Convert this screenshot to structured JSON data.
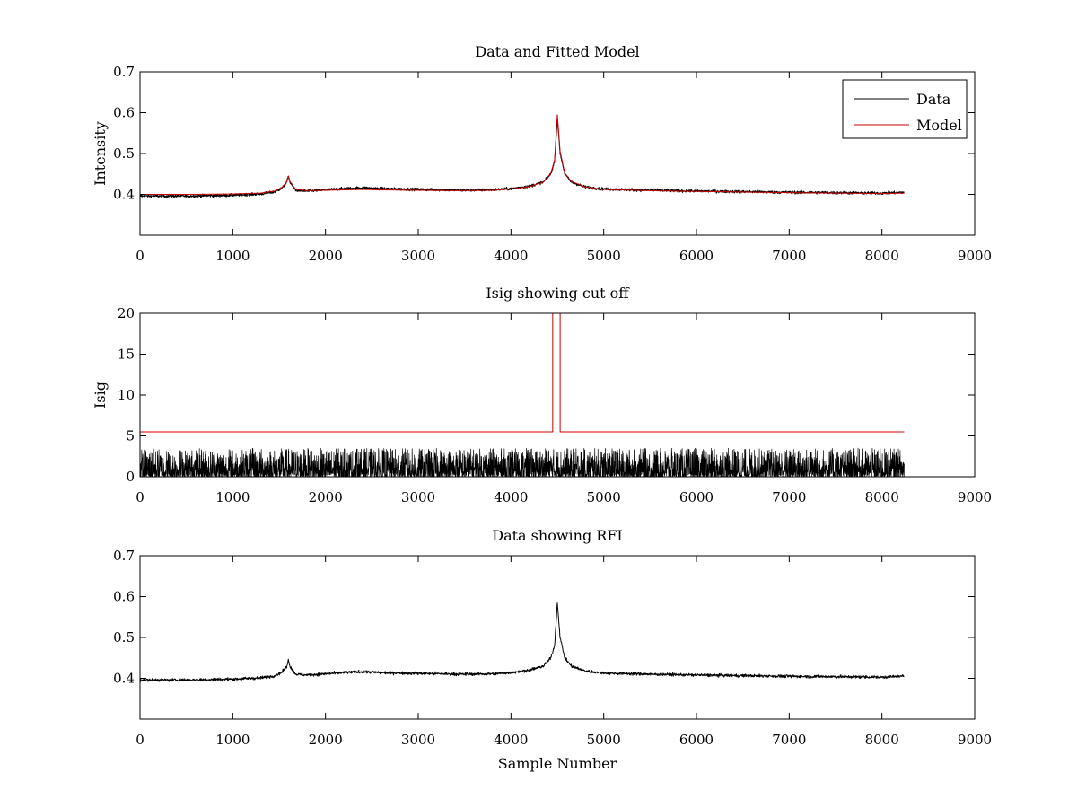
{
  "chart_data": [
    {
      "type": "line",
      "title": "Data and Fitted Model",
      "xlabel": "",
      "ylabel": "Intensity",
      "xlim": [
        0,
        9000
      ],
      "ylim": [
        0.3,
        0.7
      ],
      "xticks": [
        0,
        1000,
        2000,
        3000,
        4000,
        5000,
        6000,
        7000,
        8000,
        9000
      ],
      "yticks": [
        0.4,
        0.5,
        0.6,
        0.7
      ],
      "ytick_labels": [
        "0.4",
        "0.5",
        "0.6",
        "0.7"
      ],
      "legend": {
        "position": "top-right",
        "entries": [
          "Data",
          "Model"
        ]
      },
      "grid": false,
      "series": [
        {
          "name": "Data",
          "color": "#000000",
          "style": "noisy",
          "x": [
            0,
            500,
            1000,
            1300,
            1450,
            1530,
            1580,
            1600,
            1620,
            1680,
            1800,
            2000,
            2200,
            2400,
            2600,
            3000,
            3500,
            3800,
            4000,
            4200,
            4350,
            4430,
            4470,
            4500,
            4530,
            4580,
            4650,
            4800,
            5000,
            5500,
            6000,
            7000,
            8000,
            8240
          ],
          "y": [
            0.396,
            0.396,
            0.398,
            0.401,
            0.406,
            0.415,
            0.428,
            0.445,
            0.428,
            0.41,
            0.408,
            0.411,
            0.414,
            0.416,
            0.414,
            0.412,
            0.41,
            0.411,
            0.414,
            0.42,
            0.43,
            0.45,
            0.48,
            0.585,
            0.5,
            0.45,
            0.43,
            0.418,
            0.413,
            0.41,
            0.408,
            0.405,
            0.403,
            0.405
          ]
        },
        {
          "name": "Model",
          "color": "#cc0000",
          "style": "smooth",
          "x": [
            0,
            500,
            1000,
            1300,
            1450,
            1530,
            1580,
            1600,
            1620,
            1680,
            1800,
            2000,
            2200,
            2400,
            2600,
            3000,
            3500,
            3800,
            4000,
            4200,
            4350,
            4430,
            4470,
            4500,
            4530,
            4580,
            4650,
            4800,
            5000,
            5500,
            6000,
            7000,
            8000,
            8240
          ],
          "y": [
            0.4,
            0.4,
            0.401,
            0.403,
            0.408,
            0.417,
            0.43,
            0.445,
            0.43,
            0.412,
            0.409,
            0.41,
            0.411,
            0.412,
            0.411,
            0.41,
            0.409,
            0.41,
            0.413,
            0.419,
            0.43,
            0.452,
            0.484,
            0.595,
            0.505,
            0.452,
            0.432,
            0.418,
            0.412,
            0.409,
            0.407,
            0.404,
            0.402,
            0.403
          ]
        }
      ]
    },
    {
      "type": "line",
      "title": "Isig showing cut off",
      "xlabel": "",
      "ylabel": "Isig",
      "xlim": [
        0,
        9000
      ],
      "ylim": [
        0,
        20
      ],
      "xticks": [
        0,
        1000,
        2000,
        3000,
        4000,
        5000,
        6000,
        7000,
        8000,
        9000
      ],
      "yticks": [
        0,
        5,
        10,
        15,
        20
      ],
      "ytick_labels": [
        "0",
        "5",
        "10",
        "15",
        "20"
      ],
      "grid": false,
      "series": [
        {
          "name": "",
          "color": "#000000",
          "style": "noise-band",
          "x": [
            0,
            8240
          ],
          "y": [
            0,
            3.5
          ]
        },
        {
          "name": "",
          "color": "#cc0000",
          "style": "step",
          "x": [
            0,
            4450,
            4450,
            4530,
            4530,
            8240
          ],
          "y": [
            5.5,
            5.5,
            20,
            20,
            5.5,
            5.5
          ]
        }
      ]
    },
    {
      "type": "line",
      "title": "Data showing RFI",
      "xlabel": "Sample Number",
      "ylabel": "",
      "xlim": [
        0,
        9000
      ],
      "ylim": [
        0.3,
        0.7
      ],
      "xticks": [
        0,
        1000,
        2000,
        3000,
        4000,
        5000,
        6000,
        7000,
        8000,
        9000
      ],
      "yticks": [
        0.4,
        0.5,
        0.6,
        0.7
      ],
      "ytick_labels": [
        "0.4",
        "0.5",
        "0.6",
        "0.7"
      ],
      "grid": false,
      "series": [
        {
          "name": "",
          "color": "#000000",
          "style": "noisy",
          "x": [
            0,
            500,
            1000,
            1300,
            1450,
            1530,
            1580,
            1600,
            1620,
            1680,
            1800,
            2000,
            2200,
            2400,
            2600,
            3000,
            3500,
            3800,
            4000,
            4200,
            4350,
            4430,
            4470,
            4500,
            4530,
            4580,
            4650,
            4800,
            5000,
            5500,
            6000,
            7000,
            8000,
            8240
          ],
          "y": [
            0.396,
            0.396,
            0.398,
            0.401,
            0.406,
            0.415,
            0.428,
            0.445,
            0.428,
            0.41,
            0.408,
            0.411,
            0.414,
            0.416,
            0.414,
            0.412,
            0.41,
            0.411,
            0.414,
            0.42,
            0.43,
            0.45,
            0.48,
            0.585,
            0.5,
            0.45,
            0.43,
            0.418,
            0.413,
            0.41,
            0.408,
            0.405,
            0.403,
            0.405
          ]
        }
      ]
    }
  ]
}
